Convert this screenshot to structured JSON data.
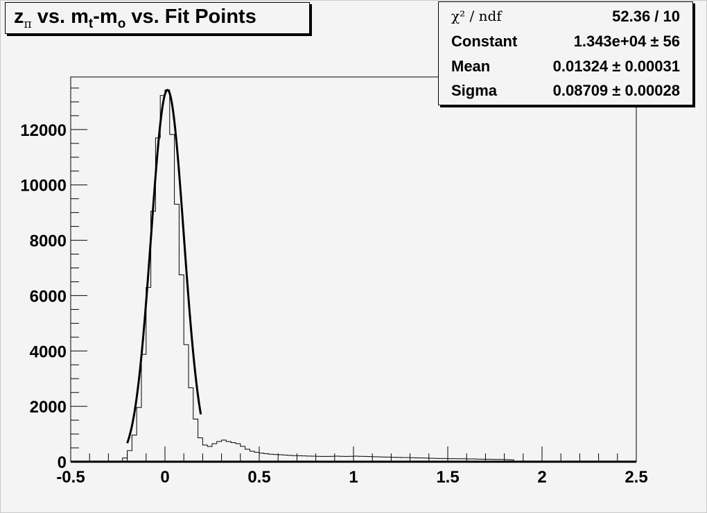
{
  "chart_data": {
    "type": "histogram",
    "title_parts": [
      {
        "text": "z",
        "sub": "π"
      },
      {
        "text": " vs. m",
        "sub": "t"
      },
      {
        "text": "-m",
        "sub": "o"
      },
      {
        "text": " vs. Fit Points",
        "sub": ""
      }
    ],
    "xlabel": "",
    "ylabel": "",
    "xlim": [
      -0.5,
      2.5
    ],
    "ylim": [
      0,
      13900
    ],
    "x_ticks": [
      "-0.5",
      "0",
      "0.5",
      "1",
      "1.5",
      "2",
      "2.5"
    ],
    "x_tick_values": [
      -0.5,
      0,
      0.5,
      1,
      1.5,
      2,
      2.5
    ],
    "y_ticks": [
      "0",
      "2000",
      "4000",
      "6000",
      "8000",
      "10000",
      "12000"
    ],
    "y_tick_values": [
      0,
      2000,
      4000,
      6000,
      8000,
      10000,
      12000
    ],
    "bin_width": 0.025,
    "bin_start": -0.5,
    "values": [
      0,
      0,
      0,
      0,
      0,
      0,
      0,
      0,
      10,
      20,
      25,
      135,
      400,
      960,
      1960,
      3880,
      6300,
      9050,
      11700,
      13230,
      13430,
      11820,
      9300,
      6750,
      4230,
      2670,
      1540,
      860,
      600,
      550,
      650,
      730,
      780,
      730,
      690,
      650,
      555,
      450,
      380,
      340,
      310,
      290,
      270,
      260,
      250,
      240,
      230,
      220,
      215,
      210,
      205,
      200,
      195,
      190,
      190,
      195,
      200,
      195,
      190,
      195,
      200,
      195,
      190,
      185,
      180,
      175,
      170,
      165,
      160,
      155,
      150,
      150,
      145,
      140,
      135,
      130,
      125,
      120,
      115,
      115,
      110,
      110,
      105,
      105,
      100,
      100,
      95,
      90,
      90,
      85,
      80,
      80,
      75,
      70,
      20,
      20,
      20,
      20,
      20,
      20,
      0,
      0,
      0,
      0,
      0,
      0,
      0,
      0,
      0,
      0,
      0,
      0,
      0,
      0,
      0,
      0,
      0,
      0,
      0,
      0
    ],
    "fit": {
      "type": "gaus",
      "constant": 13430,
      "mean": 0.01324,
      "sigma": 0.08709,
      "range": [
        -0.2,
        0.19
      ]
    },
    "stats": [
      {
        "key": "χ² / ndf",
        "value": "52.36 / 10"
      },
      {
        "key": "Constant",
        "value": "1.343e+04 ± 56"
      },
      {
        "key": "Mean",
        "value": "0.01324 ± 0.00031"
      },
      {
        "key": "Sigma",
        "value": "0.08709 ± 0.00028"
      }
    ],
    "legend_placement": "top-right",
    "grid": false,
    "colors": {
      "background": "#f4f4f4",
      "line": "#000000"
    }
  }
}
